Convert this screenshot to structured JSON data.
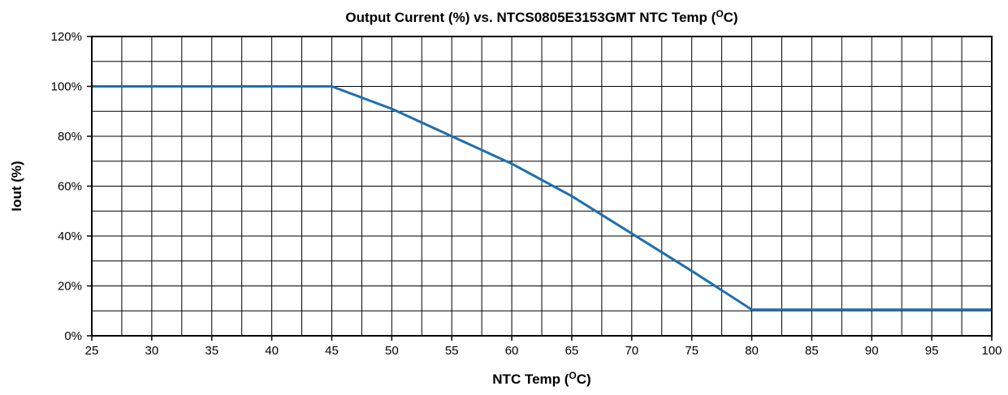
{
  "chart_data": {
    "type": "line",
    "title": {
      "main": "Output Current (%) vs. NTCS0805E3153GMT NTC Temp (",
      "superscript": "O",
      "suffix": "C)"
    },
    "xlabel": {
      "main": "NTC Temp (",
      "superscript": "O",
      "suffix": "C)"
    },
    "ylabel": "Iout (%)",
    "xlim": [
      25,
      100
    ],
    "ylim": [
      0,
      120
    ],
    "x_ticks": [
      25,
      30,
      35,
      40,
      45,
      50,
      55,
      60,
      65,
      70,
      75,
      80,
      85,
      90,
      95,
      100
    ],
    "x_tick_labels": [
      "25",
      "30",
      "35",
      "40",
      "45",
      "50",
      "55",
      "60",
      "65",
      "70",
      "75",
      "80",
      "85",
      "90",
      "95",
      "100"
    ],
    "y_ticks": [
      0,
      20,
      40,
      60,
      80,
      100,
      120
    ],
    "y_tick_labels": [
      "0%",
      "20%",
      "40%",
      "60%",
      "80%",
      "100%",
      "120%"
    ],
    "grid": true,
    "grid_x_step": 2.5,
    "grid_y_step": 10,
    "series": [
      {
        "color": "#1f6fad",
        "x": [
          25,
          45,
          50,
          55,
          60,
          65,
          70,
          75,
          80,
          100
        ],
        "y": [
          100,
          100,
          91,
          80,
          69,
          56,
          41,
          26,
          10.5,
          10.5
        ]
      }
    ]
  }
}
